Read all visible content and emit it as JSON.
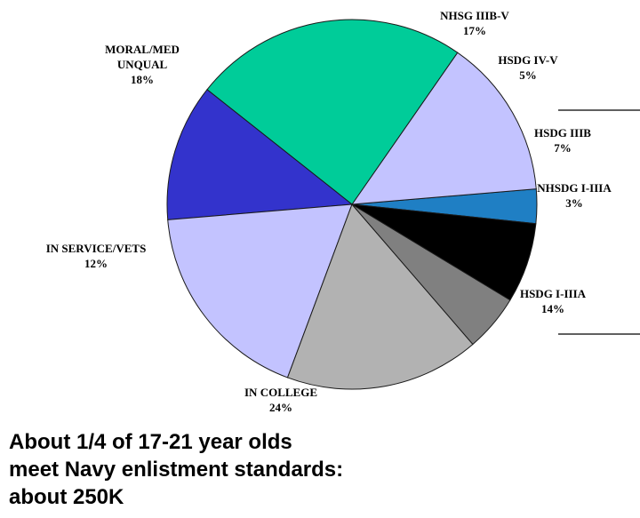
{
  "chart_data": {
    "type": "pie",
    "slices": [
      {
        "label_lines": [
          "NHSDG I-IIIA"
        ],
        "pct_label": "3%",
        "value": 3,
        "color": "#1f7fc4"
      },
      {
        "label_lines": [
          "HSDG I-IIIA"
        ],
        "pct_label": "14%",
        "value": 14,
        "color": "#c3c3ff"
      },
      {
        "label_lines": [
          "IN COLLEGE"
        ],
        "pct_label": "24%",
        "value": 24,
        "color": "#00cc99"
      },
      {
        "label_lines": [
          "IN SERVICE/VETS"
        ],
        "pct_label": "12%",
        "value": 12,
        "color": "#3333cc"
      },
      {
        "label_lines": [
          "MORAL/MED",
          "UNQUAL"
        ],
        "pct_label": "18%",
        "value": 18,
        "color": "#c3c3ff"
      },
      {
        "label_lines": [
          "NHSG IIIB-V"
        ],
        "pct_label": "17%",
        "value": 17,
        "color": "#b2b2b2"
      },
      {
        "label_lines": [
          "HSDG IV-V"
        ],
        "pct_label": "5%",
        "value": 5,
        "color": "#808080"
      },
      {
        "label_lines": [
          "HSDG IIIB"
        ],
        "pct_label": "7%",
        "value": 7,
        "color": "#000000"
      }
    ]
  },
  "caption": {
    "line1": "About 1/4 of 17-21 year olds",
    "line2": "meet Navy enlistment standards:",
    "line3": "about 250K"
  }
}
